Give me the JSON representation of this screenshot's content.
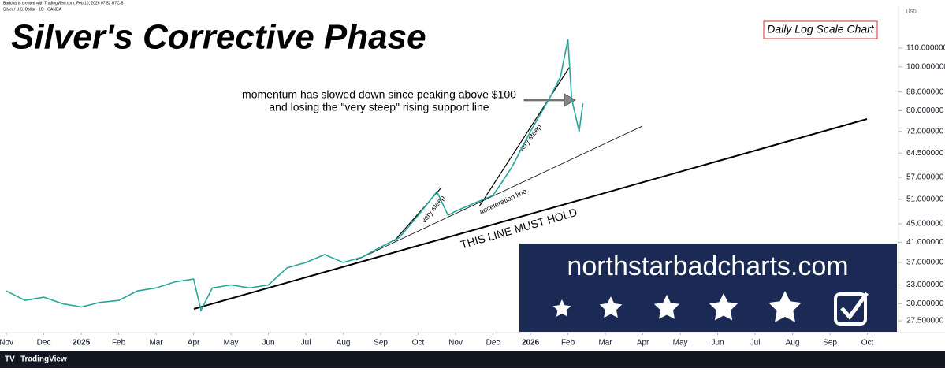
{
  "header": {
    "line1": "Badcharts created with TradingView.com, Feb 10, 2026 07:52 UTC-5",
    "line2": "Silver / U.S. Dollar · 1D · OANDA",
    "currency": "USD"
  },
  "footer": {
    "brand": "TradingView"
  },
  "logo": {
    "text": "northstarbadcharts.com"
  },
  "chart_data": {
    "type": "line",
    "title": "Silver's Corrective Phase",
    "subtitle": "Daily Log Scale Chart",
    "annotations": [
      "momentum has slowed down since peaking above $100",
      "and losing the \"very steep\" rising support line",
      "very steep",
      "very steep",
      "acceleration line",
      "THIS LINE MUST HOLD"
    ],
    "log_scale": true,
    "grid": false,
    "xlim": [
      -0.17,
      23.83
    ],
    "xticks": [
      {
        "value": 0,
        "label": "Nov"
      },
      {
        "value": 1,
        "label": "Dec"
      },
      {
        "value": 2,
        "label": "2025"
      },
      {
        "value": 3,
        "label": "Feb"
      },
      {
        "value": 4,
        "label": "Mar"
      },
      {
        "value": 5,
        "label": "Apr"
      },
      {
        "value": 6,
        "label": "May"
      },
      {
        "value": 7,
        "label": "Jun"
      },
      {
        "value": 8,
        "label": "Jul"
      },
      {
        "value": 9,
        "label": "Aug"
      },
      {
        "value": 10,
        "label": "Sep"
      },
      {
        "value": 11,
        "label": "Oct"
      },
      {
        "value": 12,
        "label": "Nov"
      },
      {
        "value": 13,
        "label": "Dec"
      },
      {
        "value": 14,
        "label": "2026"
      },
      {
        "value": 15,
        "label": "Feb"
      },
      {
        "value": 16,
        "label": "Mar"
      },
      {
        "value": 17,
        "label": "Apr"
      },
      {
        "value": 18,
        "label": "May"
      },
      {
        "value": 19,
        "label": "Jun"
      },
      {
        "value": 20,
        "label": "Jul"
      },
      {
        "value": 21,
        "label": "Aug"
      },
      {
        "value": 22,
        "label": "Sep"
      },
      {
        "value": 23,
        "label": "Oct"
      }
    ],
    "ylim": [
      25.9,
      136
    ],
    "yticks": [
      {
        "value": 27.5,
        "label": "27.500000"
      },
      {
        "value": 30,
        "label": "30.000000"
      },
      {
        "value": 33,
        "label": "33.000000"
      },
      {
        "value": 37,
        "label": "37.000000"
      },
      {
        "value": 41,
        "label": "41.000000"
      },
      {
        "value": 45,
        "label": "45.000000"
      },
      {
        "value": 51,
        "label": "51.000000"
      },
      {
        "value": 57,
        "label": "57.000000"
      },
      {
        "value": 64.5,
        "label": "64.500000"
      },
      {
        "value": 72,
        "label": "72.000000"
      },
      {
        "value": 80,
        "label": "80.000000"
      },
      {
        "value": 88,
        "label": "88.000000"
      },
      {
        "value": 100,
        "label": "100.000000"
      },
      {
        "value": 110,
        "label": "110.000000"
      }
    ],
    "series": [
      {
        "name": "Silver",
        "color": "#26a69a",
        "x": [
          0,
          0.5,
          1,
          1.5,
          2,
          2.5,
          3,
          3.5,
          4,
          4.5,
          5,
          5.2,
          5.5,
          6,
          6.5,
          7,
          7.5,
          8,
          8.5,
          9,
          9.5,
          10,
          10.5,
          11,
          11.5,
          11.8,
          12,
          12.5,
          13,
          13.5,
          14,
          14.5,
          14.8,
          15,
          15.1,
          15.3,
          15.4
        ],
        "values": [
          32,
          30.5,
          31,
          30,
          29.5,
          30.2,
          30.5,
          32,
          32.5,
          33.5,
          34,
          29,
          32.5,
          33,
          32.5,
          33,
          36,
          37,
          38.5,
          37,
          38,
          40,
          42,
          47,
          53,
          47,
          48,
          50,
          52,
          60,
          72,
          85,
          95,
          115,
          85,
          72,
          83
        ]
      }
    ]
  }
}
